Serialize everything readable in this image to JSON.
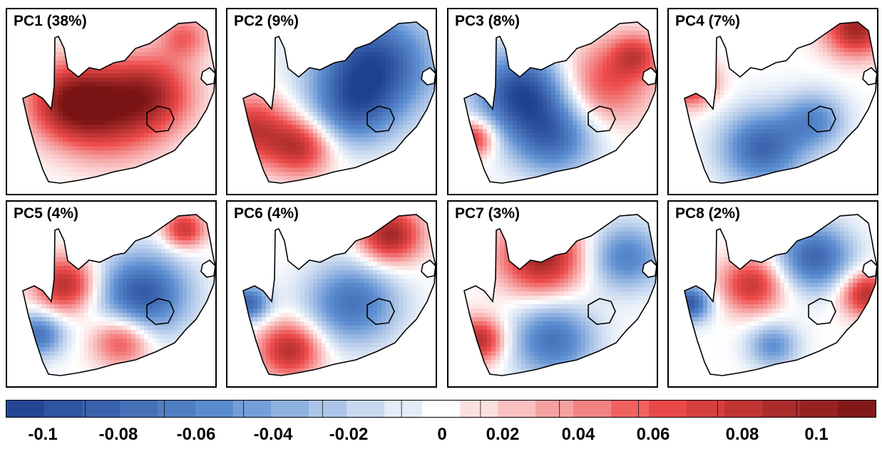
{
  "panels": [
    {
      "label": "PC1 (38%)",
      "pattern": "pc1"
    },
    {
      "label": "PC2 (9%)",
      "pattern": "pc2"
    },
    {
      "label": "PC3 (8%)",
      "pattern": "pc3"
    },
    {
      "label": "PC4 (7%)",
      "pattern": "pc4"
    },
    {
      "label": "PC5 (4%)",
      "pattern": "pc5"
    },
    {
      "label": "PC6 (4%)",
      "pattern": "pc6"
    },
    {
      "label": "PC7 (3%)",
      "pattern": "pc7"
    },
    {
      "label": "PC8 (2%)",
      "pattern": "pc8"
    }
  ],
  "colorbar": {
    "min": -0.12,
    "max": 0.12,
    "steps": 23,
    "tick_labels": [
      "-0.1",
      "-0.08",
      "-0.06",
      "-0.04",
      "-0.02",
      "0",
      "0.02",
      "0.04",
      "0.06",
      "0.08",
      "0.1"
    ],
    "tick_values": [
      -0.1,
      -0.08,
      -0.06,
      -0.04,
      -0.02,
      0,
      0.02,
      0.04,
      0.06,
      0.08,
      0.1
    ],
    "colors": {
      "dark_blue": "#1f3f8f",
      "mid_blue": "#5e8fd2",
      "white": "#ffffff",
      "mid_red": "#ee4b4b",
      "dark_red": "#7a1414"
    }
  }
}
